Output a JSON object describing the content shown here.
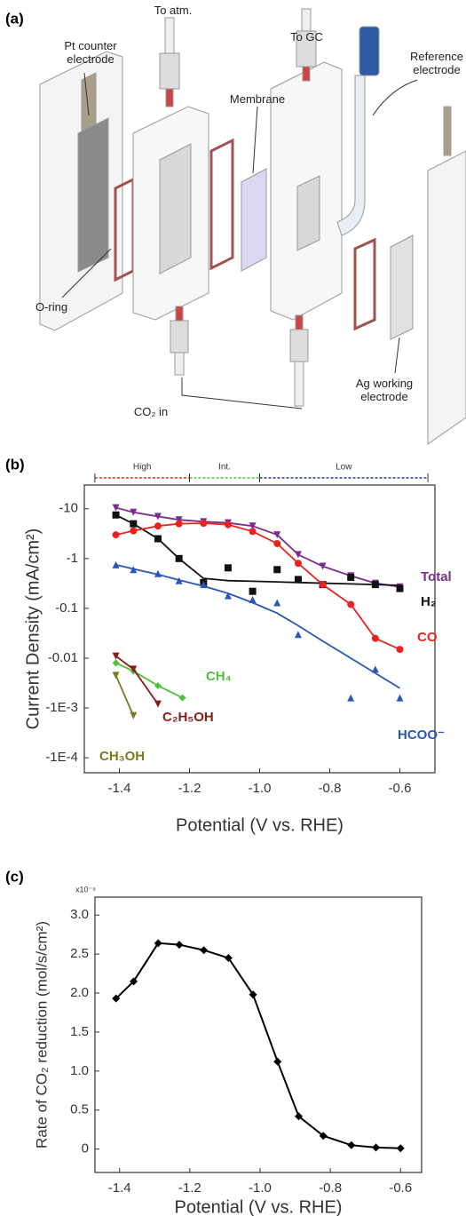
{
  "diagram": {
    "panel_label": "(a)",
    "labels": [
      "To atm.",
      "Pt counter electrode",
      "To GC",
      "Membrane",
      "Reference electrode",
      "O-ring",
      "CO₂ in",
      "Ag working electrode"
    ]
  },
  "chart_data": [
    {
      "type": "scatter",
      "panel_label": "(b)",
      "log_scale": true,
      "x_label": "Potential (V vs. RHE)",
      "y_label": "Current Density (mA/cm²)",
      "xlim": [
        -1.5,
        -0.5
      ],
      "xticks": [
        -1.4,
        -1.2,
        {
          "value": -1.0,
          "label": "-1.0"
        },
        -0.8,
        -0.6
      ],
      "ylim": [
        -5e-05,
        -30
      ],
      "yticks": [
        -10,
        -1,
        -0.1,
        -0.01,
        {
          "value": -0.001,
          "label": "-1E-3"
        },
        {
          "value": -0.0001,
          "label": "-1E-4"
        }
      ],
      "regions": [
        {
          "label": "High",
          "range": [
            -1.47,
            -1.2
          ],
          "color": "#e8231f"
        },
        {
          "label": "Int.",
          "range": [
            -1.2,
            -1.0
          ],
          "color": "#4cc23a"
        },
        {
          "label": "Low",
          "range": [
            -1.0,
            -0.52
          ],
          "color": "#2a3a7a"
        }
      ],
      "series": [
        {
          "name": "Total",
          "color": "#7b2d8e",
          "marker": "triangle-down",
          "x": [
            -1.41,
            -1.36,
            -1.29,
            -1.23,
            -1.16,
            -1.09,
            -1.02,
            -0.95,
            -0.89,
            -0.82,
            -0.74,
            -0.67,
            -0.6
          ],
          "values": [
            -10.5,
            -8.5,
            -7,
            -6,
            -5.5,
            -5.2,
            -4.5,
            -3.0,
            -1.2,
            -0.7,
            -0.45,
            -0.32,
            -0.27
          ]
        },
        {
          "name": "H₂",
          "color": "#111111",
          "marker": "square",
          "x": [
            -1.41,
            -1.36,
            -1.29,
            -1.23,
            -1.16,
            -1.09,
            -1.02,
            -0.95,
            -0.89,
            -0.82,
            -0.74,
            -0.67,
            -0.6
          ],
          "values": [
            -7.5,
            -5,
            -2.5,
            -1.0,
            -0.33,
            -0.65,
            -0.22,
            -0.6,
            -0.38,
            -0.3,
            -0.42,
            -0.3,
            -0.25
          ],
          "fit": [
            -7.5,
            -5,
            -2.5,
            -1.0,
            -0.4,
            -0.36,
            -0.35,
            -0.34,
            -0.33,
            -0.32,
            -0.31,
            -0.3,
            -0.29
          ]
        },
        {
          "name": "CO",
          "color": "#e8231f",
          "marker": "circle",
          "x": [
            -1.41,
            -1.36,
            -1.29,
            -1.23,
            -1.16,
            -1.09,
            -1.02,
            -0.95,
            -0.89,
            -0.82,
            -0.74,
            -0.67,
            -0.6
          ],
          "values": [
            -3,
            -3.6,
            -4.5,
            -5,
            -5.1,
            -4.8,
            -3.5,
            -2,
            -0.8,
            -0.3,
            -0.12,
            -0.025,
            -0.015
          ]
        },
        {
          "name": "HCOO⁻",
          "color": "#2a56b8",
          "marker": "triangle-up",
          "x": [
            -1.41,
            -1.36,
            -1.29,
            -1.23,
            -1.16,
            -1.09,
            -1.02,
            -0.95,
            -0.89,
            -0.82,
            -0.74,
            -0.67,
            -0.6
          ],
          "values": [
            -0.75,
            -0.6,
            -0.5,
            -0.36,
            -0.3,
            -0.18,
            -0.15,
            -0.13,
            -0.03,
            null,
            -0.0016,
            -0.006,
            -0.0016
          ],
          "fit": [
            -0.75,
            -0.62,
            -0.48,
            -0.37,
            -0.28,
            -0.2,
            -0.13,
            -0.08,
            -0.045,
            -0.022,
            -0.01,
            -0.005,
            -0.0025
          ]
        },
        {
          "name": "CH₄",
          "color": "#4cc23a",
          "marker": "diamond",
          "x": [
            -1.41,
            -1.36,
            -1.29,
            -1.22
          ],
          "values": [
            -0.008,
            -0.0055,
            -0.0028,
            -0.0016
          ]
        },
        {
          "name": "C₂H₅OH",
          "color": "#8b1a1a",
          "marker": "triangle-down",
          "x": [
            -1.41,
            -1.36,
            -1.29
          ],
          "values": [
            -0.011,
            -0.006,
            -0.0012
          ]
        },
        {
          "name": "CH₃OH",
          "color": "#7a7a1e",
          "marker": "triangle-down",
          "x": [
            -1.41,
            -1.36
          ],
          "values": [
            -0.0045,
            -0.0007
          ]
        }
      ]
    },
    {
      "type": "line",
      "panel_label": "(c)",
      "x_label": "Potential (V vs. RHE)",
      "y_label": "Rate of CO₂ reduction (mol/s/cm²)",
      "y_multiplier": "x10⁻⁸",
      "xlim": [
        -1.47,
        -0.54
      ],
      "xticks": [
        -1.4,
        -1.2,
        {
          "value": -1.0,
          "label": "-1.0"
        },
        -0.8,
        -0.6
      ],
      "ylim": [
        -0.3,
        3.23
      ],
      "yticks": [
        0,
        0.5,
        {
          "value": 1.0,
          "label": "1.0"
        },
        1.5,
        {
          "value": 2.0,
          "label": "2.0"
        },
        2.5,
        {
          "value": 3.0,
          "label": "3.0"
        }
      ],
      "color": "#000000",
      "marker": "diamond",
      "x": [
        -1.41,
        -1.36,
        -1.29,
        -1.23,
        -1.16,
        -1.09,
        -1.02,
        -0.95,
        -0.89,
        -0.82,
        -0.74,
        -0.67,
        -0.6
      ],
      "values": [
        1.93,
        2.15,
        2.64,
        2.62,
        2.55,
        2.45,
        1.98,
        1.12,
        0.42,
        0.17,
        0.05,
        0.02,
        0.01
      ]
    }
  ]
}
